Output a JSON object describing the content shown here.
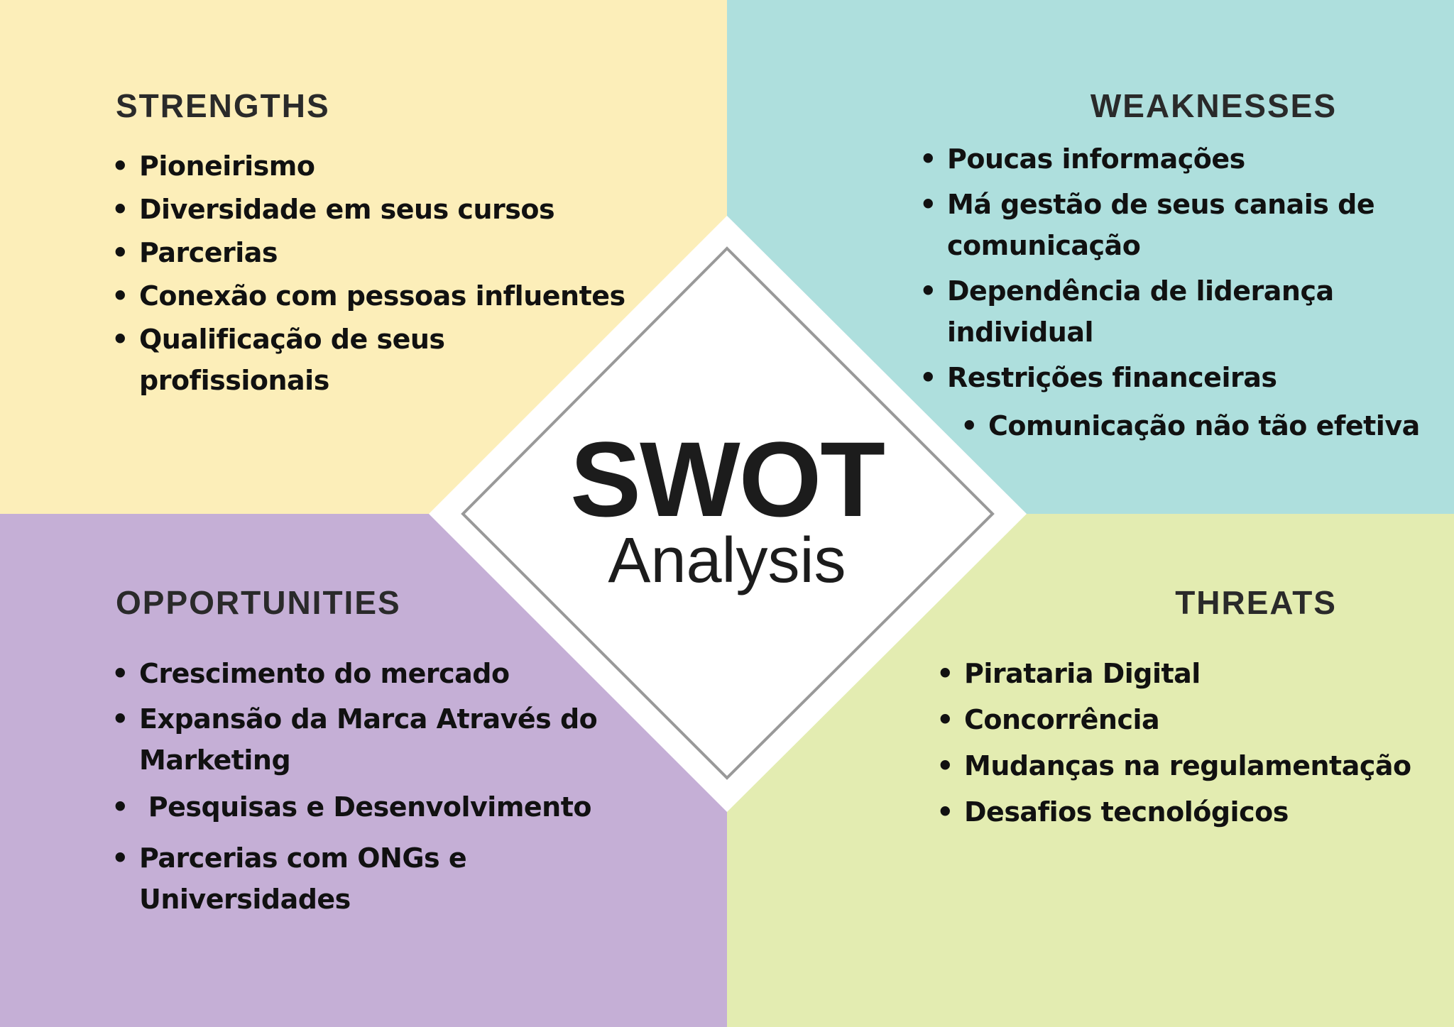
{
  "colors": {
    "strengths_bg": "#FCEEB9",
    "weaknesses_bg": "#AEDFDD",
    "opportunities_bg": "#C5AFD6",
    "threats_bg": "#E3ECB1",
    "diamond_fill": "#FFFFFF",
    "diamond_border": "#999999"
  },
  "center": {
    "title": "SWOT",
    "subtitle": "Analysis"
  },
  "strengths": {
    "heading": "STRENGTHS",
    "items": [
      "Pioneirismo",
      "Diversidade em seus cursos",
      "Parcerias",
      "Conexão com pessoas influentes",
      "Qualificação de seus",
      "profissionais"
    ]
  },
  "weaknesses": {
    "heading": "WEAKNESSES",
    "items": [
      "Poucas informações",
      "Má gestão de seus canais de",
      "comunicação",
      "Dependência de liderança",
      "individual",
      "Restrições financeiras",
      "Comunicação não tão efetiva"
    ]
  },
  "opportunities": {
    "heading": "OPPORTUNITIES",
    "items": [
      "Crescimento do mercado",
      "Expansão da Marca Através do",
      "Marketing",
      " Pesquisas e Desenvolvimento",
      "Parcerias com ONGs e",
      "Universidades"
    ]
  },
  "threats": {
    "heading": "THREATS",
    "items": [
      "Pirataria Digital",
      "Concorrência",
      "Mudanças na regulamentação",
      "Desafios tecnológicos"
    ]
  },
  "bullet": "•"
}
